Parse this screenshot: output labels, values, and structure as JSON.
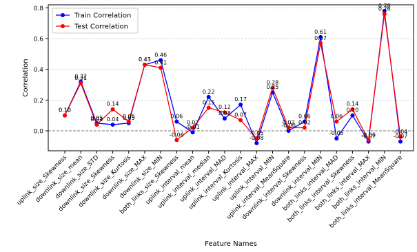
{
  "chart_data": {
    "type": "line",
    "title": "",
    "xlabel": "Feature Names",
    "ylabel": "Correlation",
    "ylim": [
      -0.13,
      0.82
    ],
    "yticks": [
      0.0,
      0.2,
      0.4,
      0.6,
      0.8
    ],
    "ytick_labels": [
      "0.0",
      "0.2",
      "0.4",
      "0.6",
      "0.8"
    ],
    "grid": "horizontal dashed",
    "zero_line": "dashed",
    "legend_position": "top-left",
    "categories": [
      "uplink_size_Skewness",
      "downlink_size_mean",
      "downlink_size_STD",
      "downlink_size_Skewness",
      "downlink_size_Kurtosis",
      "downlink_size_MAX",
      "downlink_size_MIN",
      "both_links_size_Skewness",
      "uplink_interval_mean",
      "uplink_interval_median",
      "uplink_interval_MAD",
      "uplink_interval_Kurtosis",
      "uplink_interval_MAX",
      "uplink_interval_MIN",
      "uplink_interval_MeanSquare",
      "downlink_interval_Skewness",
      "downlink_interval_MIN",
      "both_links_interval_MAD",
      "both_links_interval_Skewness",
      "both_links_interval_MAX",
      "both_links_interval_MIN",
      "both_links_interval_MeanSquare"
    ],
    "series": [
      {
        "name": "Train Correlation",
        "color": "#0000ff",
        "values": [
          0.1,
          0.32,
          0.05,
          0.04,
          0.05,
          0.43,
          0.46,
          0.06,
          -0.01,
          0.22,
          0.08,
          0.17,
          -0.08,
          0.25,
          0.0,
          0.06,
          0.61,
          -0.05,
          0.1,
          -0.07,
          0.78,
          -0.07
        ],
        "labels": [
          "0.10",
          "0.32",
          "0.05",
          "0.04",
          "0.05",
          "0.43",
          "0.46",
          "0.06",
          "-0.01",
          "0.22",
          "0.08",
          "0.17",
          "-0.08",
          "0.25",
          "-0.00",
          "0.06",
          "0.61",
          "-0.05",
          "0.10",
          "-0.07",
          "0.78",
          "-0.07"
        ]
      },
      {
        "name": "Test Correlation",
        "color": "#ff0000",
        "values": [
          0.1,
          0.31,
          0.04,
          0.14,
          0.06,
          0.43,
          0.41,
          -0.06,
          0.02,
          0.15,
          0.12,
          0.07,
          -0.05,
          0.28,
          0.02,
          0.02,
          0.57,
          0.06,
          0.14,
          -0.06,
          0.76,
          -0.04
        ],
        "labels": [
          "0.10",
          "0.31",
          "0.04",
          "0.14",
          "0.06",
          "0.43",
          "0.41",
          "-0.06",
          "0.02",
          "0.15",
          "0.12",
          "0.07",
          "-0.05",
          "0.28",
          "0.02",
          "0.02",
          "0.57",
          "0.06",
          "0.14",
          "-0.06",
          "0.76",
          "-0.04"
        ]
      }
    ]
  }
}
